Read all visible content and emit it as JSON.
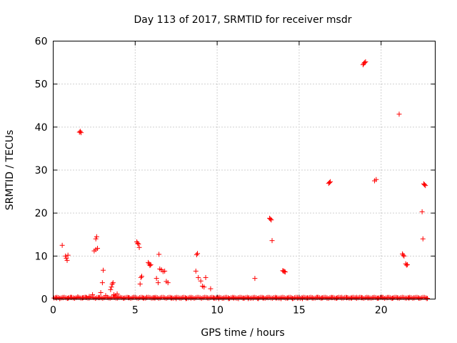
{
  "chart_data": {
    "type": "scatter",
    "title": "Day 113 of 2017, SRMTID for receiver msdr",
    "xlabel": "GPS time / hours",
    "ylabel": "SRMTID / TECUs",
    "xlim": [
      0,
      23.3
    ],
    "ylim": [
      0,
      60
    ],
    "xticks": [
      0,
      5,
      10,
      15,
      20
    ],
    "yticks": [
      0,
      10,
      20,
      30,
      40,
      50,
      60
    ],
    "grid": true,
    "marker": "+",
    "marker_color": "#ff0000",
    "series": [
      {
        "name": "SRMTID",
        "points": [
          [
            0.55,
            12.5
          ],
          [
            0.75,
            10.0
          ],
          [
            0.8,
            9.5
          ],
          [
            0.85,
            9.0
          ],
          [
            0.9,
            10.2
          ],
          [
            1.6,
            38.8
          ],
          [
            1.65,
            39.0
          ],
          [
            1.7,
            38.7
          ],
          [
            2.5,
            11.2
          ],
          [
            2.6,
            11.5
          ],
          [
            2.7,
            11.8
          ],
          [
            2.6,
            14.0
          ],
          [
            2.65,
            14.5
          ],
          [
            2.9,
            1.5
          ],
          [
            3.0,
            3.8
          ],
          [
            3.05,
            6.7
          ],
          [
            3.2,
            0.8
          ],
          [
            3.5,
            2.2
          ],
          [
            3.55,
            2.8
          ],
          [
            3.6,
            3.5
          ],
          [
            3.65,
            3.8
          ],
          [
            3.7,
            1.0
          ],
          [
            3.8,
            0.8
          ],
          [
            3.9,
            1.2
          ],
          [
            5.1,
            13.3
          ],
          [
            5.15,
            13.0
          ],
          [
            5.2,
            12.8
          ],
          [
            5.25,
            12.0
          ],
          [
            5.3,
            3.5
          ],
          [
            5.35,
            5.0
          ],
          [
            5.4,
            5.3
          ],
          [
            5.8,
            8.5
          ],
          [
            5.85,
            8.2
          ],
          [
            5.9,
            7.8
          ],
          [
            5.95,
            8.0
          ],
          [
            6.3,
            4.8
          ],
          [
            6.4,
            3.8
          ],
          [
            6.45,
            10.4
          ],
          [
            6.5,
            7.0
          ],
          [
            6.6,
            6.8
          ],
          [
            6.7,
            6.4
          ],
          [
            6.8,
            6.5
          ],
          [
            6.9,
            4.1
          ],
          [
            7.0,
            3.8
          ],
          [
            8.7,
            6.5
          ],
          [
            8.75,
            10.3
          ],
          [
            8.8,
            10.6
          ],
          [
            8.85,
            5.0
          ],
          [
            9.0,
            4.2
          ],
          [
            9.1,
            3.0
          ],
          [
            9.2,
            2.8
          ],
          [
            9.3,
            5.0
          ],
          [
            9.6,
            2.4
          ],
          [
            12.3,
            4.8
          ],
          [
            13.2,
            18.8
          ],
          [
            13.25,
            18.6
          ],
          [
            13.3,
            18.4
          ],
          [
            13.35,
            13.6
          ],
          [
            14.0,
            6.6
          ],
          [
            14.05,
            6.5
          ],
          [
            14.1,
            6.4
          ],
          [
            14.15,
            6.3
          ],
          [
            16.8,
            26.9
          ],
          [
            16.85,
            27.1
          ],
          [
            16.9,
            27.3
          ],
          [
            18.9,
            54.5
          ],
          [
            18.95,
            54.8
          ],
          [
            19.0,
            55.0
          ],
          [
            19.05,
            55.2
          ],
          [
            19.6,
            27.5
          ],
          [
            19.7,
            27.8
          ],
          [
            21.1,
            43.0
          ],
          [
            21.3,
            10.5
          ],
          [
            21.35,
            10.2
          ],
          [
            21.4,
            10.0
          ],
          [
            21.5,
            8.2
          ],
          [
            21.55,
            7.9
          ],
          [
            21.6,
            8.0
          ],
          [
            22.5,
            20.3
          ],
          [
            22.55,
            14.0
          ],
          [
            22.6,
            26.8
          ],
          [
            22.65,
            26.6
          ],
          [
            22.7,
            26.4
          ],
          [
            0.2,
            0.2
          ],
          [
            0.4,
            0.1
          ],
          [
            0.6,
            0.3
          ],
          [
            0.9,
            0.2
          ],
          [
            1.1,
            0.4
          ],
          [
            1.3,
            0.2
          ],
          [
            1.5,
            0.5
          ],
          [
            1.8,
            0.3
          ],
          [
            2.0,
            0.4
          ],
          [
            2.2,
            0.6
          ],
          [
            2.4,
            1.0
          ],
          [
            2.8,
            0.3
          ],
          [
            3.3,
            0.4
          ],
          [
            4.0,
            0.5
          ],
          [
            4.3,
            0.2
          ],
          [
            4.6,
            0.3
          ],
          [
            4.9,
            0.4
          ],
          [
            5.5,
            0.2
          ],
          [
            5.7,
            0.4
          ],
          [
            6.1,
            0.3
          ],
          [
            6.2,
            0.2
          ],
          [
            7.2,
            0.2
          ],
          [
            7.5,
            0.1
          ],
          [
            7.8,
            0.2
          ],
          [
            8.1,
            0.1
          ],
          [
            8.4,
            0.2
          ],
          [
            9.4,
            0.3
          ],
          [
            9.8,
            0.2
          ],
          [
            10.1,
            0.1
          ],
          [
            10.4,
            0.2
          ],
          [
            10.7,
            0.1
          ],
          [
            11.0,
            0.2
          ],
          [
            11.3,
            0.1
          ],
          [
            11.6,
            0.2
          ],
          [
            11.9,
            0.1
          ],
          [
            12.2,
            0.2
          ],
          [
            12.5,
            0.1
          ],
          [
            12.8,
            0.2
          ],
          [
            13.1,
            0.3
          ],
          [
            13.6,
            0.2
          ],
          [
            13.9,
            0.1
          ],
          [
            14.3,
            0.2
          ],
          [
            14.6,
            0.1
          ],
          [
            14.9,
            0.2
          ],
          [
            15.2,
            0.1
          ],
          [
            15.5,
            0.3
          ],
          [
            15.8,
            0.2
          ],
          [
            16.1,
            0.4
          ],
          [
            16.4,
            0.3
          ],
          [
            16.7,
            0.2
          ],
          [
            17.0,
            0.3
          ],
          [
            17.3,
            0.2
          ],
          [
            17.6,
            0.4
          ],
          [
            17.9,
            0.3
          ],
          [
            18.2,
            0.2
          ],
          [
            18.5,
            0.4
          ],
          [
            18.8,
            0.3
          ],
          [
            19.2,
            0.2
          ],
          [
            19.5,
            0.3
          ],
          [
            19.8,
            0.2
          ],
          [
            20.1,
            0.4
          ],
          [
            20.4,
            0.3
          ],
          [
            20.7,
            0.2
          ],
          [
            21.0,
            0.3
          ],
          [
            21.7,
            0.2
          ],
          [
            22.0,
            0.3
          ],
          [
            22.3,
            0.2
          ],
          [
            22.8,
            0.1
          ]
        ]
      }
    ]
  }
}
